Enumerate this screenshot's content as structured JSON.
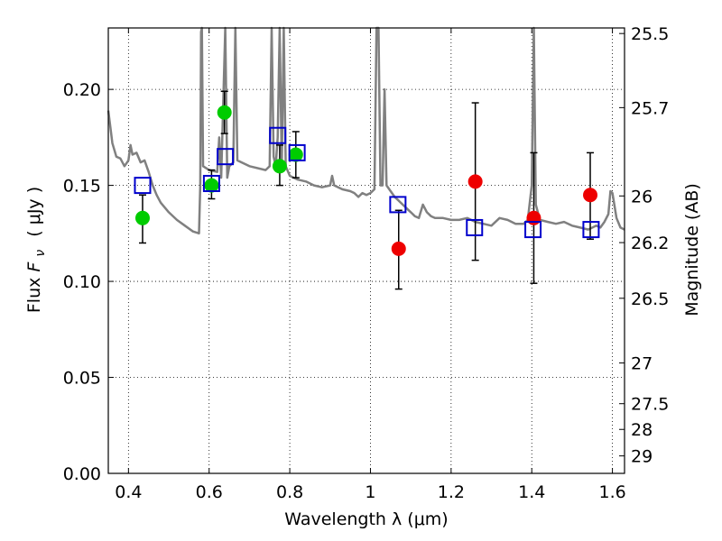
{
  "chart_data": {
    "type": "scatter",
    "xlabel": "Wavelength  λ (μm)",
    "ylabel": "Flux  F_ν  ( μJy )",
    "ylabel_parts": {
      "prefix": "Flux ",
      "symbol": "F",
      "subscript": "ν",
      "unit": "( μJy )"
    },
    "y2label": "Magnitude (AB)",
    "xlim": [
      0.35,
      1.63
    ],
    "ylim": [
      0.0,
      0.232
    ],
    "grid": true,
    "x_ticks": [
      0.4,
      0.6,
      0.8,
      1.0,
      1.2,
      1.4,
      1.6
    ],
    "x_tick_labels": [
      "0.4",
      "0.6",
      "0.8",
      "1",
      "1.2",
      "1.4",
      "1.6"
    ],
    "y_ticks": [
      0.0,
      0.05,
      0.1,
      0.15,
      0.2
    ],
    "y_tick_labels": [
      "0.00",
      "0.05",
      "0.10",
      "0.15",
      "0.20"
    ],
    "mag_ticks": [
      {
        "label": "25.5",
        "flux": 0.2291
      },
      {
        "label": "25.7",
        "flux": 0.1905
      },
      {
        "label": "26",
        "flux": 0.1445
      },
      {
        "label": "26.2",
        "flux": 0.1202
      },
      {
        "label": "26.5",
        "flux": 0.0912
      },
      {
        "label": "27",
        "flux": 0.0575
      },
      {
        "label": "27.5",
        "flux": 0.0363
      },
      {
        "label": "28",
        "flux": 0.0229
      },
      {
        "label": "29",
        "flux": 0.0091
      }
    ],
    "series": [
      {
        "role": "model_spectrum",
        "color": "#808080",
        "points": [
          [
            0.35,
            0.189
          ],
          [
            0.36,
            0.172
          ],
          [
            0.37,
            0.165
          ],
          [
            0.38,
            0.164
          ],
          [
            0.39,
            0.16
          ],
          [
            0.4,
            0.163
          ],
          [
            0.405,
            0.171
          ],
          [
            0.41,
            0.166
          ],
          [
            0.42,
            0.167
          ],
          [
            0.43,
            0.162
          ],
          [
            0.44,
            0.163
          ],
          [
            0.45,
            0.157
          ],
          [
            0.46,
            0.15
          ],
          [
            0.47,
            0.145
          ],
          [
            0.48,
            0.141
          ],
          [
            0.5,
            0.136
          ],
          [
            0.52,
            0.132
          ],
          [
            0.54,
            0.129
          ],
          [
            0.56,
            0.126
          ],
          [
            0.575,
            0.125
          ],
          [
            0.578,
            0.15
          ],
          [
            0.58,
            0.23
          ],
          [
            0.582,
            0.232
          ],
          [
            0.585,
            0.16
          ],
          [
            0.6,
            0.158
          ],
          [
            0.62,
            0.157
          ],
          [
            0.625,
            0.175
          ],
          [
            0.63,
            0.154
          ],
          [
            0.64,
            0.232
          ],
          [
            0.645,
            0.154
          ],
          [
            0.65,
            0.16
          ],
          [
            0.66,
            0.162
          ],
          [
            0.665,
            0.232
          ],
          [
            0.67,
            0.163
          ],
          [
            0.7,
            0.16
          ],
          [
            0.74,
            0.158
          ],
          [
            0.75,
            0.16
          ],
          [
            0.755,
            0.232
          ],
          [
            0.76,
            0.165
          ],
          [
            0.765,
            0.16
          ],
          [
            0.77,
            0.175
          ],
          [
            0.775,
            0.232
          ],
          [
            0.78,
            0.16
          ],
          [
            0.785,
            0.232
          ],
          [
            0.79,
            0.16
          ],
          [
            0.8,
            0.155
          ],
          [
            0.82,
            0.153
          ],
          [
            0.84,
            0.152
          ],
          [
            0.86,
            0.15
          ],
          [
            0.88,
            0.149
          ],
          [
            0.9,
            0.15
          ],
          [
            0.905,
            0.155
          ],
          [
            0.91,
            0.15
          ],
          [
            0.93,
            0.148
          ],
          [
            0.95,
            0.147
          ],
          [
            0.96,
            0.146
          ],
          [
            0.97,
            0.144
          ],
          [
            0.98,
            0.146
          ],
          [
            0.99,
            0.145
          ],
          [
            1.0,
            0.146
          ],
          [
            1.01,
            0.148
          ],
          [
            1.015,
            0.232
          ],
          [
            1.02,
            0.232
          ],
          [
            1.025,
            0.15
          ],
          [
            1.03,
            0.15
          ],
          [
            1.035,
            0.2
          ],
          [
            1.04,
            0.15
          ],
          [
            1.05,
            0.147
          ],
          [
            1.06,
            0.144
          ],
          [
            1.07,
            0.142
          ],
          [
            1.08,
            0.14
          ],
          [
            1.09,
            0.138
          ],
          [
            1.1,
            0.136
          ],
          [
            1.11,
            0.134
          ],
          [
            1.12,
            0.133
          ],
          [
            1.13,
            0.14
          ],
          [
            1.14,
            0.136
          ],
          [
            1.15,
            0.134
          ],
          [
            1.16,
            0.133
          ],
          [
            1.18,
            0.133
          ],
          [
            1.2,
            0.132
          ],
          [
            1.22,
            0.132
          ],
          [
            1.24,
            0.133
          ],
          [
            1.26,
            0.131
          ],
          [
            1.28,
            0.13
          ],
          [
            1.3,
            0.129
          ],
          [
            1.32,
            0.133
          ],
          [
            1.34,
            0.132
          ],
          [
            1.36,
            0.13
          ],
          [
            1.38,
            0.13
          ],
          [
            1.39,
            0.132
          ],
          [
            1.4,
            0.15
          ],
          [
            1.405,
            0.232
          ],
          [
            1.41,
            0.14
          ],
          [
            1.42,
            0.132
          ],
          [
            1.44,
            0.131
          ],
          [
            1.46,
            0.13
          ],
          [
            1.48,
            0.131
          ],
          [
            1.5,
            0.129
          ],
          [
            1.52,
            0.128
          ],
          [
            1.54,
            0.127
          ],
          [
            1.56,
            0.129
          ],
          [
            1.57,
            0.128
          ],
          [
            1.58,
            0.131
          ],
          [
            1.59,
            0.135
          ],
          [
            1.595,
            0.147
          ],
          [
            1.6,
            0.146
          ],
          [
            1.61,
            0.133
          ],
          [
            1.62,
            0.128
          ],
          [
            1.63,
            0.127
          ]
        ]
      },
      {
        "role": "observed_optical",
        "color": "#00cc00",
        "points": [
          {
            "x": 0.435,
            "y": 0.133,
            "err_low": 0.12,
            "err_high": 0.145
          },
          {
            "x": 0.606,
            "y": 0.15,
            "err_low": 0.143,
            "err_high": 0.158
          },
          {
            "x": 0.638,
            "y": 0.188,
            "err_low": 0.177,
            "err_high": 0.199
          },
          {
            "x": 0.775,
            "y": 0.16,
            "err_low": 0.15,
            "err_high": 0.171
          },
          {
            "x": 0.815,
            "y": 0.166,
            "err_low": 0.154,
            "err_high": 0.178
          }
        ]
      },
      {
        "role": "observed_infrared",
        "color": "#ee0000",
        "points": [
          {
            "x": 1.07,
            "y": 0.117,
            "err_low": 0.096,
            "err_high": 0.137
          },
          {
            "x": 1.26,
            "y": 0.152,
            "err_low": 0.111,
            "err_high": 0.193
          },
          {
            "x": 1.405,
            "y": 0.133,
            "err_low": 0.099,
            "err_high": 0.167
          },
          {
            "x": 1.545,
            "y": 0.145,
            "err_low": 0.122,
            "err_high": 0.167
          }
        ]
      },
      {
        "role": "model_photometry",
        "color": "#0000cc",
        "points": [
          {
            "x": 0.435,
            "y": 0.15
          },
          {
            "x": 0.606,
            "y": 0.151
          },
          {
            "x": 0.64,
            "y": 0.165
          },
          {
            "x": 0.77,
            "y": 0.176
          },
          {
            "x": 0.818,
            "y": 0.167
          },
          {
            "x": 1.068,
            "y": 0.14
          },
          {
            "x": 1.258,
            "y": 0.128
          },
          {
            "x": 1.403,
            "y": 0.127
          },
          {
            "x": 1.547,
            "y": 0.127
          }
        ]
      }
    ]
  }
}
